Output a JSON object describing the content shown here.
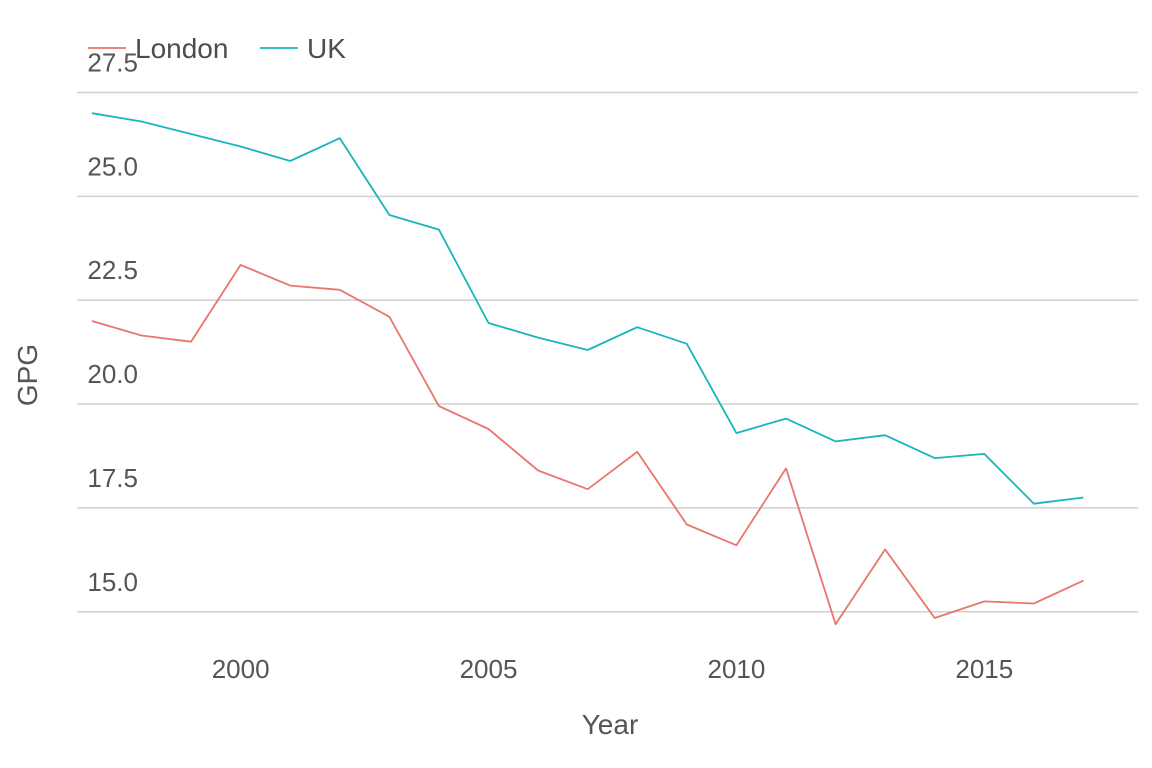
{
  "chart_data": {
    "type": "line",
    "title": "",
    "xlabel": "Year",
    "ylabel": "GPG",
    "x": [
      1997,
      1998,
      1999,
      2000,
      2001,
      2002,
      2003,
      2004,
      2005,
      2006,
      2007,
      2008,
      2009,
      2010,
      2011,
      2012,
      2013,
      2014,
      2015,
      2016,
      2017
    ],
    "xlim": [
      1996.7,
      2018.1
    ],
    "ylim": [
      14.2,
      27.8
    ],
    "xticks": [
      2000,
      2005,
      2010,
      2015
    ],
    "xtick_labels": [
      "2000",
      "2005",
      "2010",
      "2015"
    ],
    "yticks": [
      15.0,
      17.5,
      20.0,
      22.5,
      25.0,
      27.5
    ],
    "ytick_labels": [
      "15.0",
      "17.5",
      "20.0",
      "22.5",
      "25.0",
      "27.5"
    ],
    "grid": true,
    "legend": "top-left",
    "series": [
      {
        "name": "London",
        "color": "#e8766d",
        "values": [
          22.0,
          21.65,
          21.5,
          23.35,
          22.85,
          22.75,
          22.1,
          19.95,
          19.4,
          18.4,
          17.95,
          18.85,
          17.1,
          16.6,
          18.45,
          14.7,
          16.5,
          14.85,
          15.25,
          15.2,
          15.75
        ]
      },
      {
        "name": "UK",
        "color": "#18b5bb",
        "values": [
          27.0,
          26.8,
          26.5,
          26.2,
          25.85,
          26.4,
          24.55,
          24.2,
          21.95,
          21.6,
          21.3,
          21.85,
          21.45,
          19.3,
          19.65,
          19.1,
          19.25,
          18.7,
          18.8,
          17.6,
          17.75
        ]
      }
    ]
  }
}
